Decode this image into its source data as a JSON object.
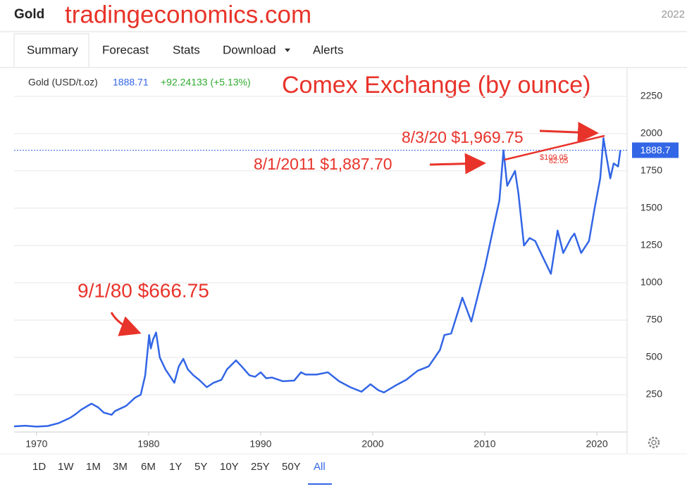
{
  "header": {
    "title": "Gold",
    "site": "tradingeconomics.com",
    "year": "2022"
  },
  "tabs": [
    "Summary",
    "Forecast",
    "Stats",
    "Download",
    "Alerts"
  ],
  "ranges": [
    "1D",
    "1W",
    "1M",
    "3M",
    "6M",
    "1Y",
    "5Y",
    "10Y",
    "25Y",
    "50Y",
    "All"
  ],
  "quote": {
    "name": "Gold (USD/t.oz)",
    "price": "1888.71",
    "change": "+92.24133 (+5.13%)"
  },
  "chart_data": {
    "type": "line",
    "title": "Comex Exchange (by ounce)",
    "annotations": [
      "9/1/80 $666.75",
      "8/1/2011 $1,887.70",
      "8/3/20 $1,969.75",
      "$109.05",
      "82.05"
    ],
    "x": [
      1968,
      1969,
      1970,
      1971,
      1972,
      1973,
      1973.5,
      1974,
      1974.9,
      1975.5,
      1976,
      1976.7,
      1977,
      1978,
      1978.8,
      1979.3,
      1979.7,
      1980.05,
      1980.2,
      1980.4,
      1980.67,
      1981,
      1981.5,
      1982.3,
      1982.7,
      1983.1,
      1983.5,
      1984,
      1984.5,
      1985.2,
      1985.8,
      1986.5,
      1987,
      1987.8,
      1988.3,
      1989,
      1989.5,
      1990,
      1990.5,
      1991,
      1992,
      1993,
      1993.6,
      1994,
      1995,
      1996,
      1997,
      1998,
      1999,
      1999.8,
      2000.5,
      2001,
      2002,
      2003,
      2004,
      2005,
      2006,
      2006.4,
      2007,
      2008,
      2008.8,
      2009.5,
      2010,
      2010.8,
      2011.3,
      2011.67,
      2012,
      2012.7,
      2013,
      2013.5,
      2014,
      2014.5,
      2015,
      2015.9,
      2016.5,
      2017,
      2017.7,
      2018,
      2018.6,
      2019.3,
      2019.8,
      2020.3,
      2020.59,
      2020.8,
      2021.2,
      2021.5,
      2021.9,
      2022.1
    ],
    "series": [
      {
        "name": "Gold",
        "color": "#3366e6",
        "values": [
          38,
          42,
          36,
          40,
          60,
          95,
          120,
          150,
          190,
          165,
          130,
          115,
          140,
          175,
          230,
          250,
          380,
          650,
          560,
          620,
          666.75,
          500,
          420,
          330,
          440,
          490,
          420,
          380,
          350,
          300,
          330,
          350,
          420,
          480,
          440,
          380,
          370,
          400,
          360,
          365,
          340,
          345,
          400,
          385,
          385,
          400,
          340,
          300,
          270,
          320,
          280,
          265,
          310,
          350,
          410,
          440,
          550,
          650,
          660,
          900,
          740,
          950,
          1100,
          1380,
          1550,
          1887.7,
          1650,
          1750,
          1600,
          1250,
          1300,
          1280,
          1200,
          1060,
          1350,
          1200,
          1300,
          1330,
          1200,
          1280,
          1500,
          1700,
          1969.75,
          1870,
          1700,
          1800,
          1780,
          1888.71
        ]
      }
    ],
    "reference_line": {
      "value": 1888.71,
      "label": "1888.7"
    },
    "xlim": [
      1968,
      2022.7
    ],
    "xticks": [
      1970,
      1980,
      1990,
      2000,
      2010,
      2020
    ],
    "ylim": [
      0,
      2424
    ],
    "yticks": [
      250,
      500,
      750,
      1000,
      1250,
      1500,
      1750,
      2000,
      2250
    ],
    "grid": true
  }
}
